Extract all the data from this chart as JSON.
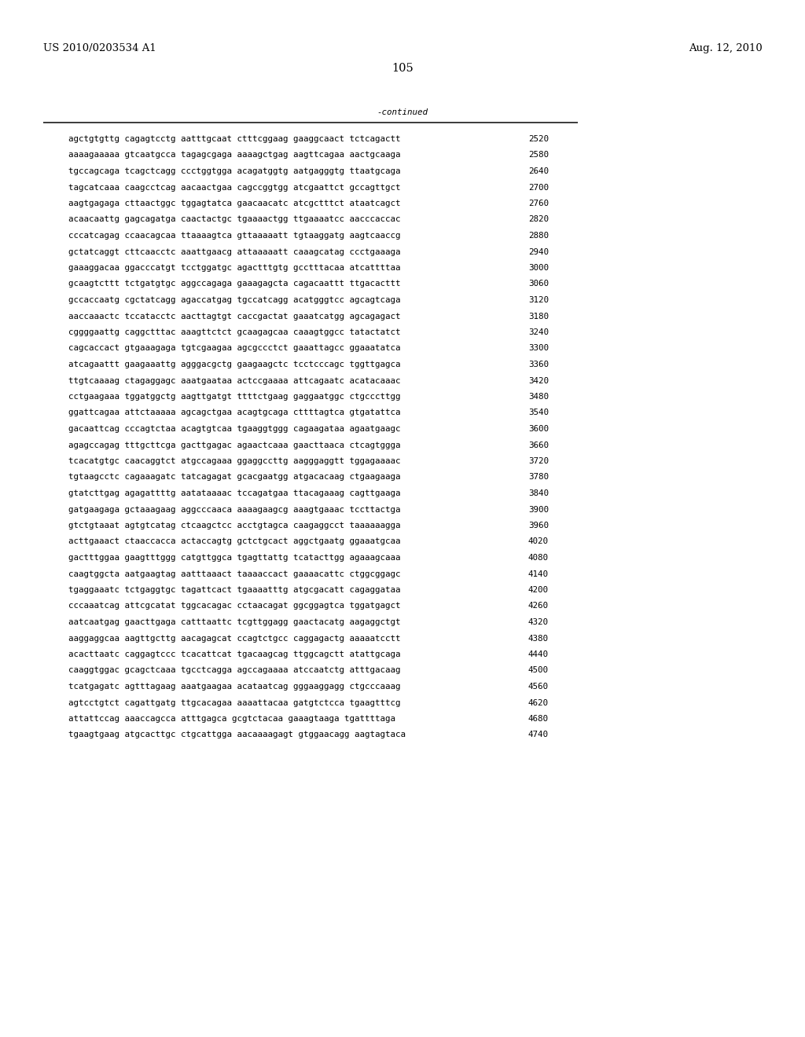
{
  "header_left": "US 2010/0203534 A1",
  "header_right": "Aug. 12, 2010",
  "page_number": "105",
  "continued_label": "-continued",
  "background_color": "#ffffff",
  "text_color": "#000000",
  "font_size_header": 9.5,
  "font_size_body": 7.8,
  "font_size_page": 10.5,
  "lines": [
    [
      "agctgtgttg cagagtcctg aatttgcaat ctttcggaag gaaggcaact tctcagactt",
      "2520"
    ],
    [
      "aaaagaaaaa gtcaatgcca tagagcgaga aaaagctgag aagttcagaa aactgcaaga",
      "2580"
    ],
    [
      "tgccagcaga tcagctcagg ccctggtgga acagatggtg aatgagggtg ttaatgcaga",
      "2640"
    ],
    [
      "tagcatcaaa caagcctcag aacaactgaa cagccggtgg atcgaattct gccagttgct",
      "2700"
    ],
    [
      "aagtgagaga cttaactggc tggagtatca gaacaacatc atcgctttct ataatcagct",
      "2760"
    ],
    [
      "acaacaattg gagcagatga caactactgc tgaaaactgg ttgaaaatcc aacccaccac",
      "2820"
    ],
    [
      "cccatcagag ccaacagcaa ttaaaagtca gttaaaaatt tgtaaggatg aagtcaaccg",
      "2880"
    ],
    [
      "gctatcaggt cttcaacctc aaattgaacg attaaaaatt caaagcatag ccctgaaaga",
      "2940"
    ],
    [
      "gaaaggacaa ggacccatgt tcctggatgc agactttgtg gcctttacaa atcattttaa",
      "3000"
    ],
    [
      "gcaagtcttt tctgatgtgc aggccagaga gaaagagcta cagacaattt ttgacacttt",
      "3060"
    ],
    [
      "gccaccaatg cgctatcagg agaccatgag tgccatcagg acatgggtcc agcagtcaga",
      "3120"
    ],
    [
      "aaccaaactc tccatacctc aacttagtgt caccgactat gaaatcatgg agcagagact",
      "3180"
    ],
    [
      "cggggaattg caggctttac aaagttctct gcaagagcaa caaagtggcc tatactatct",
      "3240"
    ],
    [
      "cagcaccact gtgaaagaga tgtcgaagaa agcgccctct gaaattagcc ggaaatatca",
      "3300"
    ],
    [
      "atcagaattt gaagaaattg agggacgctg gaagaagctc tcctcccagc tggttgagca",
      "3360"
    ],
    [
      "ttgtcaaaag ctagaggagc aaatgaataa actccgaaaa attcagaatc acatacaaac",
      "3420"
    ],
    [
      "cctgaagaaa tggatggctg aagttgatgt ttttctgaag gaggaatggc ctgcccttgg",
      "3480"
    ],
    [
      "ggattcagaa attctaaaaa agcagctgaa acagtgcaga cttttagtca gtgatattca",
      "3540"
    ],
    [
      "gacaattcag cccagtctaa acagtgtcaa tgaaggtggg cagaagataa agaatgaagc",
      "3600"
    ],
    [
      "agagccagag tttgcttcga gacttgagac agaactcaaa gaacttaaca ctcagtggga",
      "3660"
    ],
    [
      "tcacatgtgc caacaggtct atgccagaaa ggaggccttg aagggaggtt tggagaaaac",
      "3720"
    ],
    [
      "tgtaagcctc cagaaagatc tatcagagat gcacgaatgg atgacacaag ctgaagaaga",
      "3780"
    ],
    [
      "gtatcttgag agagattttg aatataaaac tccagatgaa ttacagaaag cagttgaaga",
      "3840"
    ],
    [
      "gatgaagaga gctaaagaag aggcccaaca aaaagaagcg aaagtgaaac tccttactga",
      "3900"
    ],
    [
      "gtctgtaaat agtgtcatag ctcaagctcc acctgtagca caagaggcct taaaaaagga",
      "3960"
    ],
    [
      "acttgaaact ctaaccacca actaccagtg gctctgcact aggctgaatg ggaaatgcaa",
      "4020"
    ],
    [
      "gactttggaa gaagtttggg catgttggca tgagttattg tcatacttgg agaaagcaaa",
      "4080"
    ],
    [
      "caagtggcta aatgaagtag aatttaaact taaaaccact gaaaacattc ctggcggagc",
      "4140"
    ],
    [
      "tgaggaaatc tctgaggtgc tagattcact tgaaaatttg atgcgacatt cagaggataa",
      "4200"
    ],
    [
      "cccaaatcag attcgcatat tggcacagac cctaacagat ggcggagtca tggatgagct",
      "4260"
    ],
    [
      "aatcaatgag gaacttgaga catttaattc tcgttggagg gaactacatg aagaggctgt",
      "4320"
    ],
    [
      "aaggaggcaa aagttgcttg aacagagcat ccagtctgcc caggagactg aaaaatcctt",
      "4380"
    ],
    [
      "acacttaatc caggagtccc tcacattcat tgacaagcag ttggcagctt atattgcaga",
      "4440"
    ],
    [
      "caaggtggac gcagctcaaa tgcctcagga agccagaaaa atccaatctg atttgacaag",
      "4500"
    ],
    [
      "tcatgagatc agtttagaag aaatgaagaa acataatcag gggaaggagg ctgcccaaag",
      "4560"
    ],
    [
      "agtcctgtct cagattgatg ttgcacagaa aaaattacaa gatgtctcca tgaagtttcg",
      "4620"
    ],
    [
      "attattccag aaaccagcca atttgagca gcgtctacaa gaaagtaaga tgattttaga",
      "4680"
    ],
    [
      "tgaagtgaag atgcacttgc ctgcattgga aacaaaagagt gtggaacagg aagtagtaca",
      "4740"
    ]
  ]
}
